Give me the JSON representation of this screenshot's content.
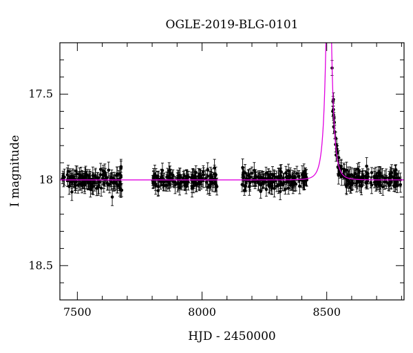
{
  "chart_data": {
    "type": "scatter",
    "title": "OGLE-2019-BLG-0101",
    "xlabel": "HJD - 2450000",
    "ylabel": "I magnitude",
    "xlim": [
      7430,
      8810
    ],
    "ylim": [
      18.7,
      17.2
    ],
    "y_inverted": true,
    "grid": false,
    "x_ticks": [
      7500,
      8000,
      8500
    ],
    "x_tick_labels": [
      "7500",
      "8000",
      "8500"
    ],
    "y_ticks": [
      17.5,
      18,
      18.5
    ],
    "y_tick_labels": [
      "17.5",
      "18",
      "18.5"
    ],
    "colors": {
      "data": "#000000",
      "model": "#e000e0"
    },
    "series": [
      {
        "type": "scatter_errorbar",
        "observing_windows": [
          [
            7440,
            7680
          ],
          [
            7800,
            8060
          ],
          [
            8160,
            8430
          ],
          [
            8520,
            8800
          ]
        ],
        "baseline_mag": 18.0,
        "scatter_mag": 0.035,
        "typical_error": 0.04,
        "points": [
          [
            7445,
            18.0,
            0.04
          ],
          [
            7460,
            17.97,
            0.04
          ],
          [
            7478,
            18.07,
            0.05
          ],
          [
            7495,
            18.01,
            0.04
          ],
          [
            7512,
            17.99,
            0.04
          ],
          [
            7530,
            18.03,
            0.05
          ],
          [
            7548,
            17.98,
            0.04
          ],
          [
            7565,
            18.0,
            0.04
          ],
          [
            7584,
            18.04,
            0.05
          ],
          [
            7602,
            17.97,
            0.04
          ],
          [
            7620,
            18.02,
            0.04
          ],
          [
            7640,
            18.1,
            0.05
          ],
          [
            7660,
            18.0,
            0.04
          ],
          [
            7675,
            17.93,
            0.05
          ],
          [
            7805,
            17.99,
            0.04
          ],
          [
            7825,
            18.04,
            0.05
          ],
          [
            7848,
            18.0,
            0.04
          ],
          [
            7870,
            17.96,
            0.04
          ],
          [
            7892,
            18.03,
            0.05
          ],
          [
            7915,
            18.01,
            0.04
          ],
          [
            7938,
            17.98,
            0.04
          ],
          [
            7960,
            18.05,
            0.05
          ],
          [
            7984,
            18.0,
            0.04
          ],
          [
            8006,
            17.97,
            0.04
          ],
          [
            8030,
            18.03,
            0.05
          ],
          [
            8050,
            17.93,
            0.05
          ],
          [
            8165,
            18.0,
            0.04
          ],
          [
            8190,
            18.04,
            0.05
          ],
          [
            8215,
            17.98,
            0.04
          ],
          [
            8240,
            18.02,
            0.04
          ],
          [
            8265,
            17.99,
            0.04
          ],
          [
            8290,
            18.05,
            0.05
          ],
          [
            8315,
            18.01,
            0.04
          ],
          [
            8340,
            17.98,
            0.04
          ],
          [
            8365,
            18.03,
            0.05
          ],
          [
            8390,
            18.0,
            0.04
          ],
          [
            8415,
            17.97,
            0.04
          ],
          [
            8524,
            17.6,
            0.03
          ],
          [
            8528,
            17.69,
            0.04
          ],
          [
            8532,
            17.72,
            0.04
          ],
          [
            8540,
            17.8,
            0.04
          ],
          [
            8548,
            17.87,
            0.04
          ],
          [
            8558,
            17.92,
            0.04
          ],
          [
            8570,
            17.95,
            0.04
          ],
          [
            8585,
            17.99,
            0.04
          ],
          [
            8600,
            17.97,
            0.04
          ],
          [
            8620,
            18.02,
            0.05
          ],
          [
            8640,
            17.99,
            0.04
          ],
          [
            8660,
            17.92,
            0.05
          ],
          [
            8680,
            18.03,
            0.05
          ],
          [
            8700,
            18.0,
            0.04
          ],
          [
            8725,
            18.04,
            0.05
          ],
          [
            8750,
            17.99,
            0.04
          ],
          [
            8775,
            18.03,
            0.04
          ],
          [
            8795,
            18.0,
            0.04
          ]
        ]
      },
      {
        "type": "model_curve",
        "t0": 8508,
        "u0": 0.085,
        "tE": 22,
        "baseline_mag": 18.0
      }
    ]
  }
}
